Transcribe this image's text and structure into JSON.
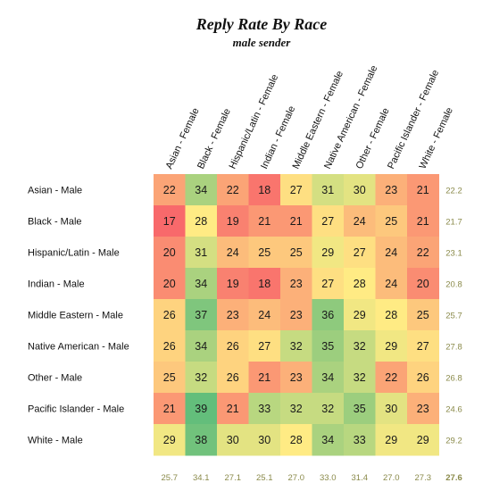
{
  "chart_data": {
    "type": "heatmap",
    "title": "Reply Rate By Race",
    "subtitle": "male sender",
    "columns": [
      "Asian - Female",
      "Black - Female",
      "Hispanic/Latin - Female",
      "Indian - Female",
      "Middle Eastern - Female",
      "Native American - Female",
      "Other - Female",
      "Pacific Islander - Female",
      "White - Female"
    ],
    "rows": [
      "Asian - Male",
      "Black - Male",
      "Hispanic/Latin - Male",
      "Indian - Male",
      "Middle Eastern - Male",
      "Native American - Male",
      "Other - Male",
      "Pacific Islander - Male",
      "White - Male"
    ],
    "values": [
      [
        22,
        34,
        22,
        18,
        27,
        31,
        30,
        23,
        21
      ],
      [
        17,
        28,
        19,
        21,
        21,
        27,
        24,
        25,
        21
      ],
      [
        20,
        31,
        24,
        25,
        25,
        29,
        27,
        24,
        22
      ],
      [
        20,
        34,
        19,
        18,
        23,
        27,
        28,
        24,
        20
      ],
      [
        26,
        37,
        23,
        24,
        23,
        36,
        29,
        28,
        25
      ],
      [
        26,
        34,
        26,
        27,
        32,
        35,
        32,
        29,
        27
      ],
      [
        25,
        32,
        26,
        21,
        23,
        34,
        32,
        22,
        26
      ],
      [
        21,
        39,
        21,
        33,
        32,
        32,
        35,
        30,
        23
      ],
      [
        29,
        38,
        30,
        30,
        28,
        34,
        33,
        29,
        29
      ]
    ],
    "row_averages": [
      "22.2",
      "21.7",
      "23.1",
      "20.8",
      "25.7",
      "27.8",
      "26.8",
      "24.6",
      "29.2"
    ],
    "column_averages": [
      "25.7",
      "34.1",
      "27.1",
      "25.1",
      "27.0",
      "33.0",
      "31.4",
      "27.0",
      "27.3"
    ],
    "overall_average": "27.6",
    "color_scale": {
      "low": "#f8696b",
      "mid": "#ffeb84",
      "high": "#63be7b"
    }
  }
}
